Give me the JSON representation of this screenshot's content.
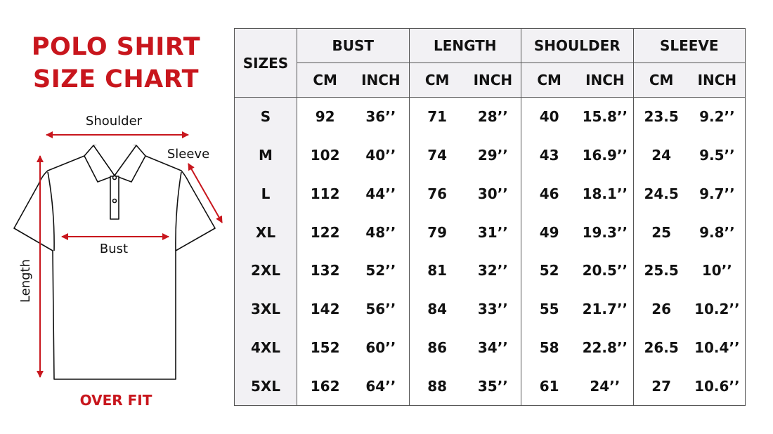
{
  "title": {
    "line1": "POLO SHIRT",
    "line2": "SIZE CHART"
  },
  "diagram": {
    "shoulder": "Shoulder",
    "sleeve": "Sleeve",
    "bust": "Bust",
    "length": "Length",
    "arrow_color": "#c8161d"
  },
  "fit_label": "OVER FIT",
  "table": {
    "sizes_header": "SIZES",
    "groups": [
      "BUST",
      "LENGTH",
      "SHOULDER",
      "SLEEVE"
    ],
    "units": [
      "CM",
      "INCH"
    ],
    "rows": [
      {
        "size": "S",
        "values": [
          "92",
          "36’’",
          "71",
          "28’’",
          "40",
          "15.8’’",
          "23.5",
          "9.2’’"
        ]
      },
      {
        "size": "M",
        "values": [
          "102",
          "40’’",
          "74",
          "29’’",
          "43",
          "16.9’’",
          "24",
          "9.5’’"
        ]
      },
      {
        "size": "L",
        "values": [
          "112",
          "44’’",
          "76",
          "30’’",
          "46",
          "18.1’’",
          "24.5",
          "9.7’’"
        ]
      },
      {
        "size": "XL",
        "values": [
          "122",
          "48’’",
          "79",
          "31’’",
          "49",
          "19.3’’",
          "25",
          "9.8’’"
        ]
      },
      {
        "size": "2XL",
        "values": [
          "132",
          "52’’",
          "81",
          "32’’",
          "52",
          "20.5’’",
          "25.5",
          "10’’"
        ]
      },
      {
        "size": "3XL",
        "values": [
          "142",
          "56’’",
          "84",
          "33’’",
          "55",
          "21.7’’",
          "26",
          "10.2’’"
        ]
      },
      {
        "size": "4XL",
        "values": [
          "152",
          "60’’",
          "86",
          "34’’",
          "58",
          "22.8’’",
          "26.5",
          "10.4’’"
        ]
      },
      {
        "size": "5XL",
        "values": [
          "162",
          "64’’",
          "88",
          "35’’",
          "61",
          "24’’",
          "27",
          "10.6’’"
        ]
      }
    ]
  }
}
